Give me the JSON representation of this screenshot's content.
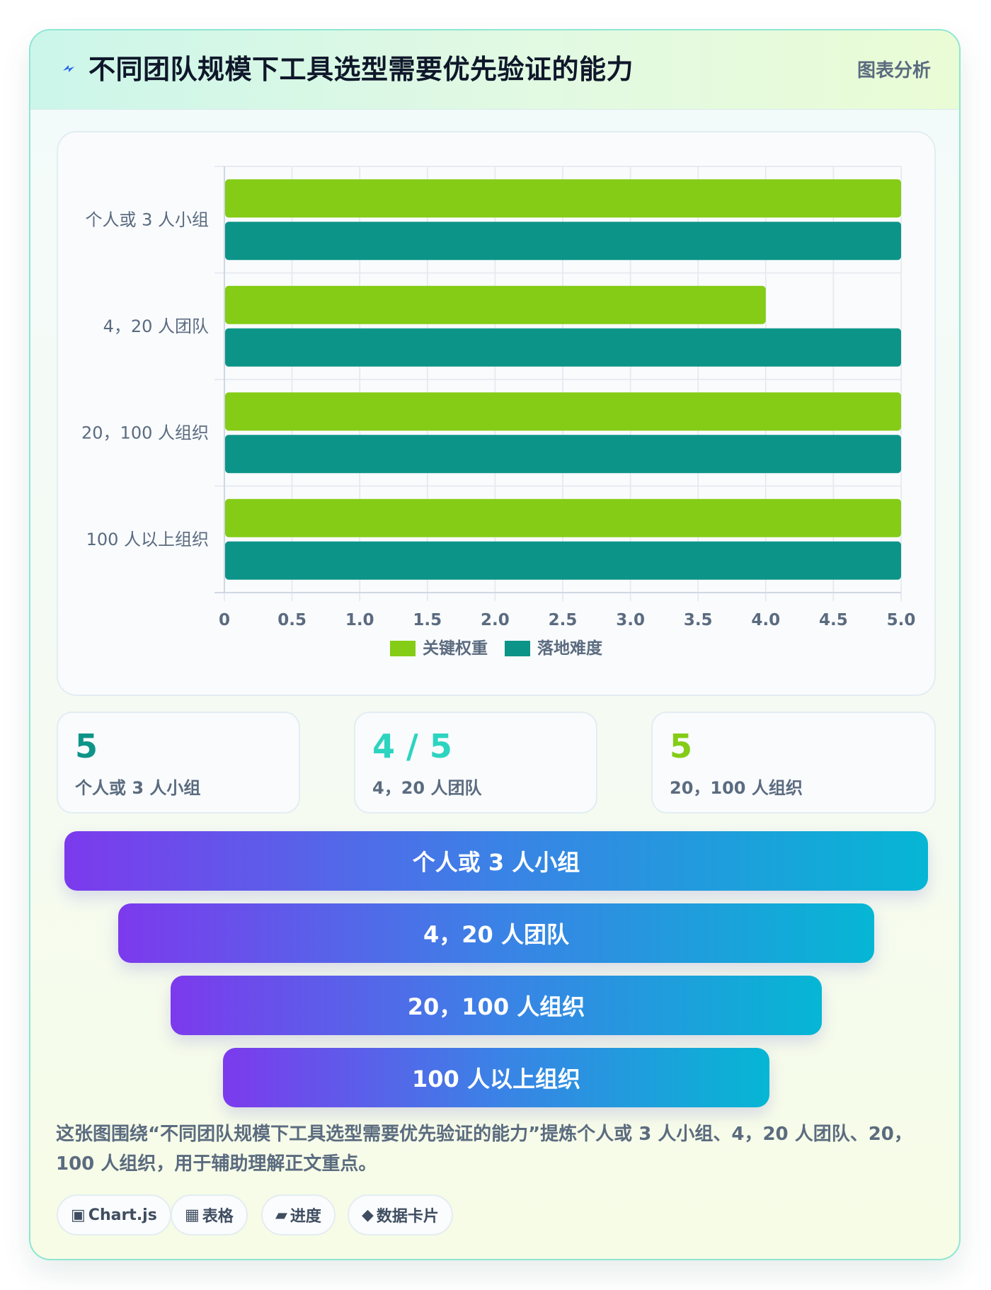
{
  "header": {
    "title": "不同团队规模下工具选型需要优先验证的能力",
    "tag": "图表分析",
    "icon": "bolt-icon"
  },
  "chart_data": {
    "type": "bar",
    "orientation": "horizontal",
    "categories": [
      "个人或 3 人小组",
      "4，20 人团队",
      "20，100 人组织",
      "100 人以上组织"
    ],
    "series": [
      {
        "name": "关键权重",
        "color": "#84cc16",
        "values": [
          5,
          4,
          5,
          5
        ]
      },
      {
        "name": "落地难度",
        "color": "#0d9488",
        "values": [
          5,
          5,
          5,
          5
        ]
      }
    ],
    "xticks": [
      "0",
      "0.5",
      "1.0",
      "1.5",
      "2.0",
      "2.5",
      "3.0",
      "3.5",
      "4.0",
      "4.5",
      "5.0"
    ],
    "xlim": [
      0,
      5
    ],
    "grid": true,
    "legend": "bottom-center"
  },
  "stats": [
    {
      "value": "5",
      "label": "个人或 3 人小组",
      "color": "#0d9488"
    },
    {
      "value": "4 / 5",
      "label": "4，20 人团队",
      "color": "#2dd4bf"
    },
    {
      "value": "5",
      "label": "20，100 人组织",
      "color": "#84cc16"
    }
  ],
  "funnel": [
    "个人或 3 人小组",
    "4，20 人团队",
    "20，100 人组织",
    "100 人以上组织"
  ],
  "description": "这张图围绕“不同团队规模下工具选型需要优先验证的能力”提炼个人或 3 人小组、4，20 人团队、20，100 人组织，用于辅助理解正文重点。",
  "chips": [
    {
      "icon": "▣",
      "label": "Chart.js"
    },
    {
      "icon": "▦",
      "label": "表格"
    },
    {
      "icon": "▰",
      "label": "进度"
    },
    {
      "icon": "◆",
      "label": "数据卡片"
    }
  ]
}
